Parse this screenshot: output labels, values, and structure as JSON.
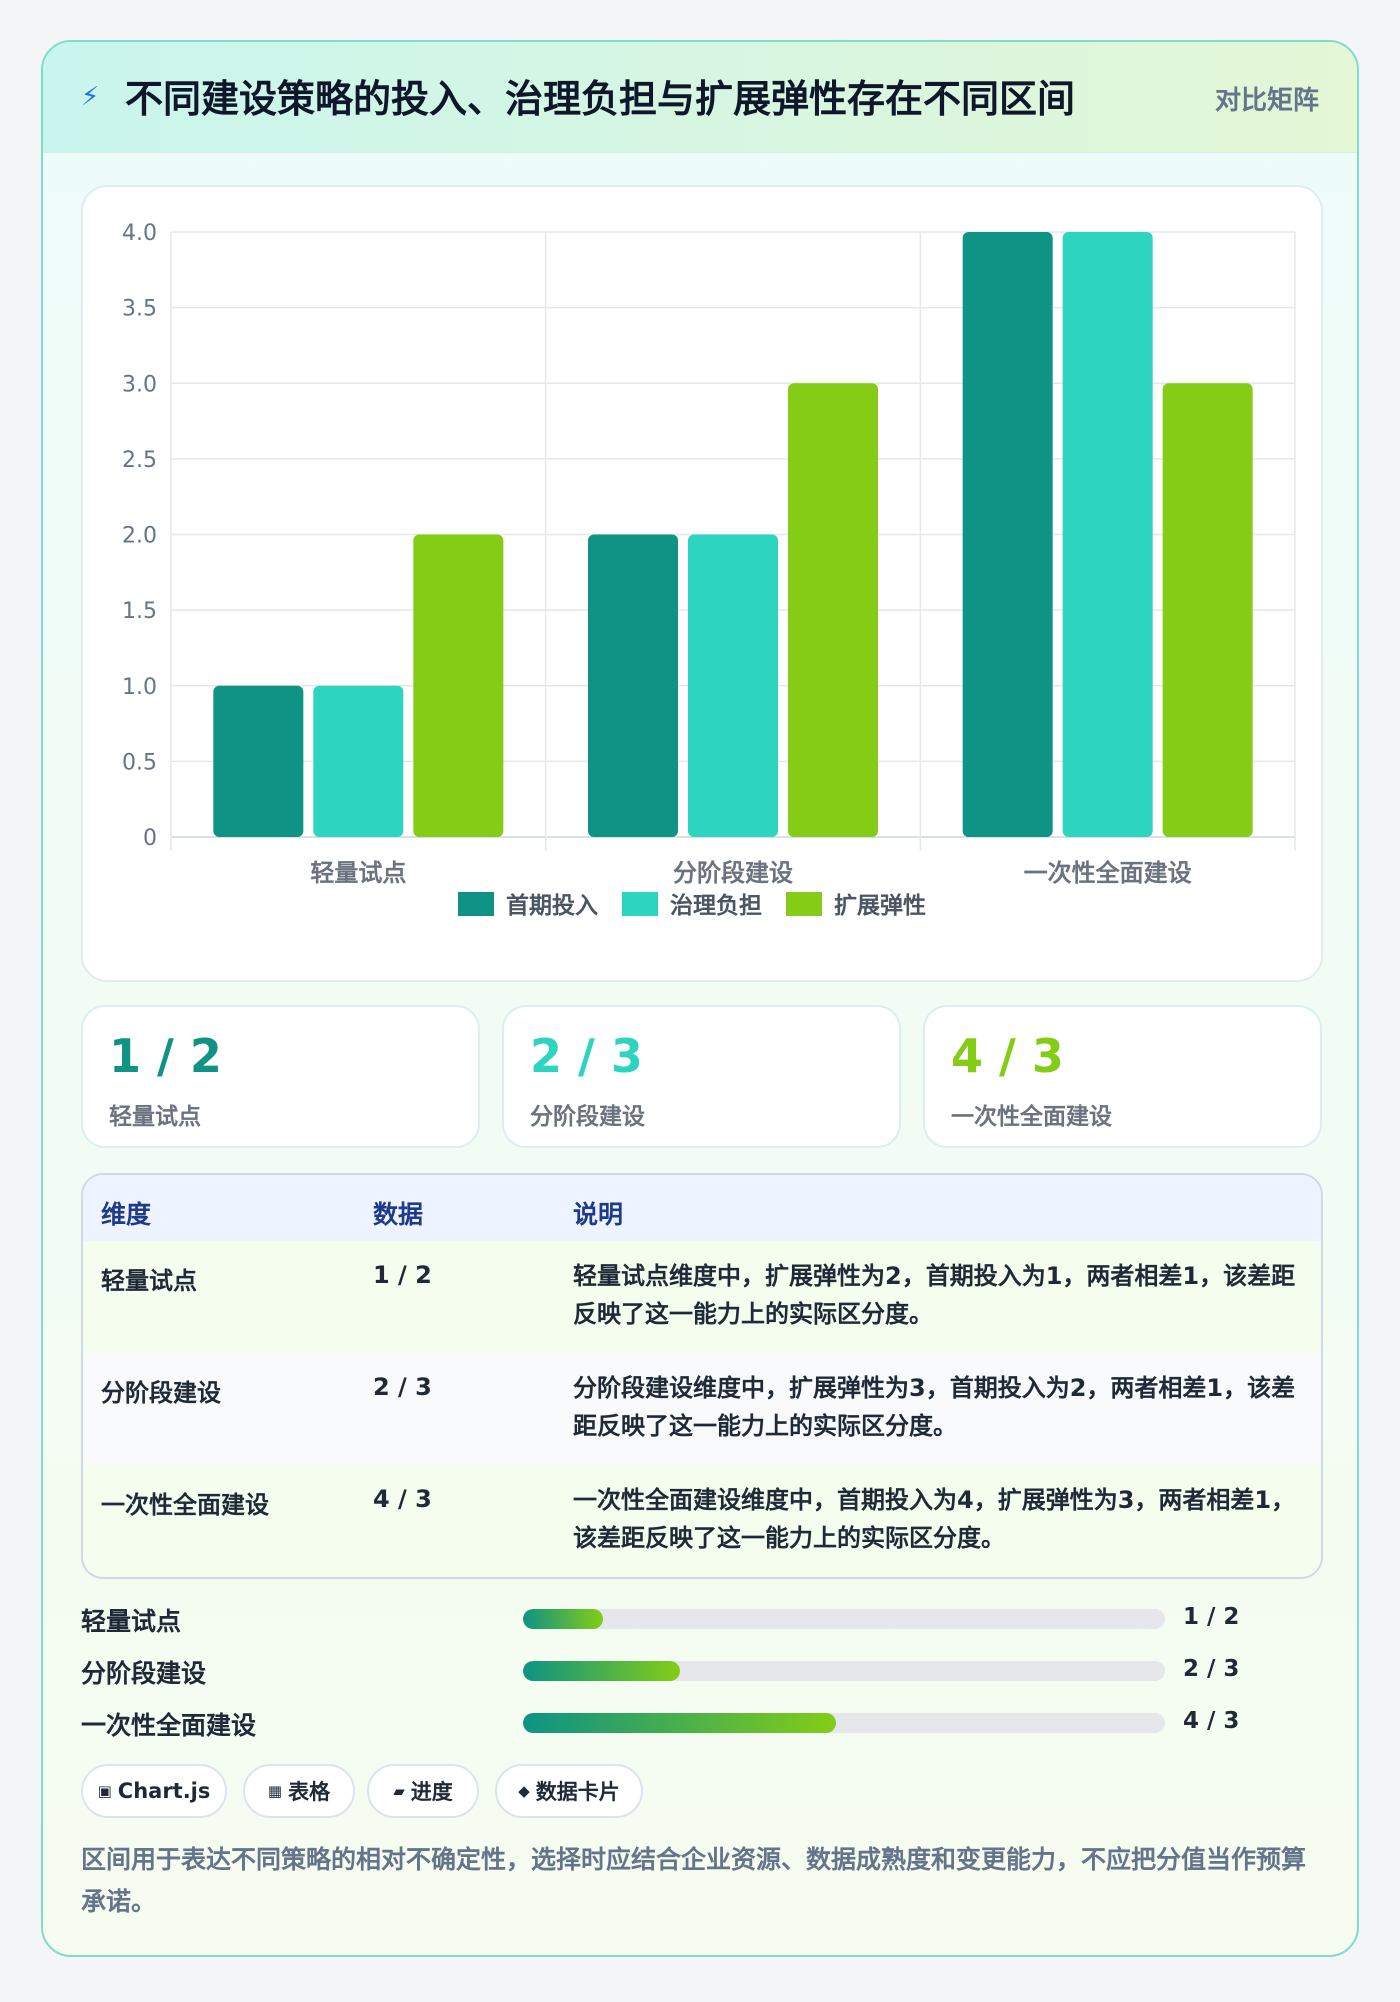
{
  "header": {
    "title": "不同建设策略的投入、治理负担与扩展弹性存在不同区间",
    "tag": "对比矩阵",
    "icon": "lightning-icon"
  },
  "chart_data": {
    "type": "bar",
    "categories": [
      "轻量试点",
      "分阶段建设",
      "一次性全面建设"
    ],
    "series": [
      {
        "name": "首期投入",
        "color": "#0e9384",
        "values": [
          1,
          2,
          4
        ]
      },
      {
        "name": "治理负担",
        "color": "#2dd4bf",
        "values": [
          1,
          2,
          4
        ]
      },
      {
        "name": "扩展弹性",
        "color": "#84cc16",
        "values": [
          2,
          3,
          3
        ]
      }
    ],
    "ylim": [
      0,
      4
    ],
    "yticks": [
      "0",
      "0.5",
      "1.0",
      "1.5",
      "2.0",
      "2.5",
      "3.0",
      "3.5",
      "4.0"
    ],
    "legend_position": "bottom",
    "grid": true
  },
  "stats": [
    {
      "value": "1 / 2",
      "label": "轻量试点",
      "color": "#0e9384"
    },
    {
      "value": "2 / 3",
      "label": "分阶段建设",
      "color": "#2dd4bf"
    },
    {
      "value": "4 / 3",
      "label": "一次性全面建设",
      "color": "#84cc16"
    }
  ],
  "table": {
    "headers": [
      "维度",
      "数据",
      "说明"
    ],
    "rows": [
      {
        "dim": "轻量试点",
        "data": "1 / 2",
        "desc": "轻量试点维度中，扩展弹性为2，首期投入为1，两者相差1，该差距反映了这一能力上的实际区分度。"
      },
      {
        "dim": "分阶段建设",
        "data": "2 / 3",
        "desc": "分阶段建设维度中，扩展弹性为3，首期投入为2，两者相差1，该差距反映了这一能力上的实际区分度。"
      },
      {
        "dim": "一次性全面建设",
        "data": "4 / 3",
        "desc": "一次性全面建设维度中，首期投入为4，扩展弹性为3，两者相差1，该差距反映了这一能力上的实际区分度。"
      }
    ]
  },
  "progress": [
    {
      "label": "轻量试点",
      "value": "1 / 2",
      "fill_fraction": 0.125
    },
    {
      "label": "分阶段建设",
      "value": "2 / 3",
      "fill_fraction": 0.245
    },
    {
      "label": "一次性全面建设",
      "value": "4 / 3",
      "fill_fraction": 0.488
    }
  ],
  "chips": [
    {
      "icon": "chart-icon",
      "glyph": "▣",
      "label": "Chart.js"
    },
    {
      "icon": "table-icon",
      "glyph": "▦",
      "label": "表格"
    },
    {
      "icon": "progress-icon",
      "glyph": "▰",
      "label": "进度"
    },
    {
      "icon": "card-icon",
      "glyph": "◆",
      "label": "数据卡片"
    }
  ],
  "footer": "区间用于表达不同策略的相对不确定性，选择时应结合企业资源、数据成熟度和变更能力，不应把分值当作预算承诺。"
}
